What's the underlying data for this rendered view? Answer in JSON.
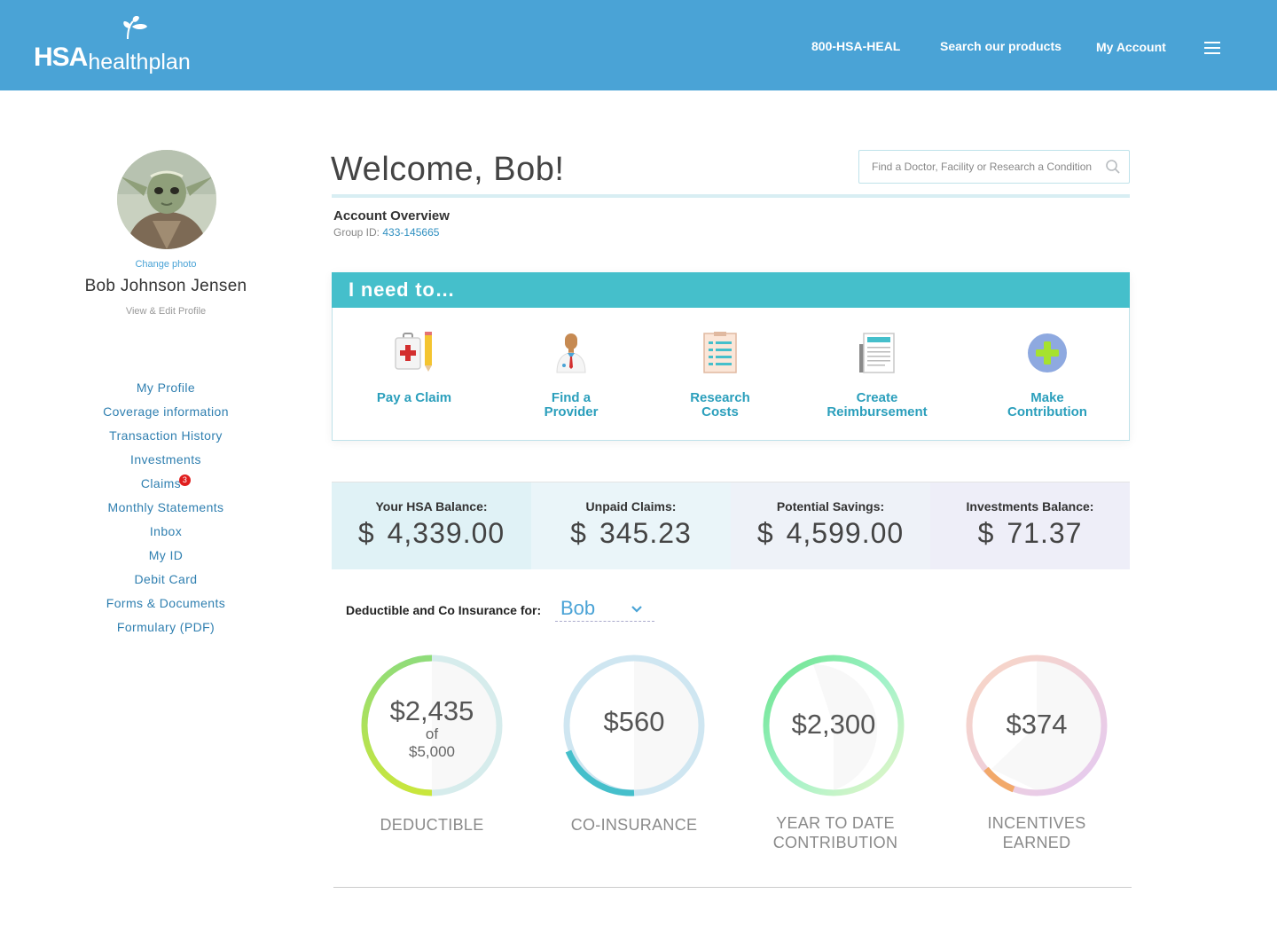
{
  "header": {
    "logo_bold": "HSA",
    "logo_light": "healthplan",
    "phone": "800-HSA-HEAL",
    "search_products": "Search our products",
    "my_account": "My Account",
    "menu_icon": "hamburger-menu-icon"
  },
  "sidebar": {
    "change_photo": "Change photo",
    "user_name": "Bob Johnson Jensen",
    "edit_profile": "View & Edit Profile",
    "nav": [
      {
        "label": "My Profile"
      },
      {
        "label": "Coverage information"
      },
      {
        "label": "Transaction History"
      },
      {
        "label": "Investments"
      },
      {
        "label": "Claims",
        "badge": "3"
      },
      {
        "label": "Monthly Statements"
      },
      {
        "label": "Inbox"
      },
      {
        "label": "My ID"
      },
      {
        "label": "Debit Card"
      },
      {
        "label": "Forms & Documents"
      },
      {
        "label": "Formulary (PDF)"
      }
    ]
  },
  "main": {
    "welcome": "Welcome, Bob!",
    "search_placeholder": "Find a Doctor, Facility or Research a Condition",
    "account_overview": "Account Overview",
    "group_id_label": "Group ID: ",
    "group_id_value": "433-145665",
    "need_title": "I need to…",
    "actions": [
      {
        "line1": "Pay a Claim",
        "line2": "",
        "icon": "medical-kit-pencil-icon"
      },
      {
        "line1": "Find a",
        "line2": "Provider",
        "icon": "doctor-icon"
      },
      {
        "line1": "Research",
        "line2": "Costs",
        "icon": "clipboard-icon"
      },
      {
        "line1": "Create",
        "line2": "Reimbursement",
        "icon": "document-icon"
      },
      {
        "line1": "Make",
        "line2": "Contribution",
        "icon": "plus-circle-icon"
      }
    ],
    "balances": [
      {
        "title": "Your HSA Balance:",
        "currency": "$",
        "amount": "4,339.00",
        "bg": "#e0f2f6"
      },
      {
        "title": "Unpaid Claims:",
        "currency": "$",
        "amount": "345.23",
        "bg": "#eaf5f9"
      },
      {
        "title": "Potential Savings:",
        "currency": "$",
        "amount": "4,599.00",
        "bg": "#eef2f8"
      },
      {
        "title": "Investments Balance:",
        "currency": "$",
        "amount": "71.37",
        "bg": "#eeeef8"
      }
    ],
    "deductible_label": "Deductible and Co Insurance for:",
    "deductible_person": "Bob",
    "gauges": [
      {
        "amount": "$2,435",
        "of": "of",
        "total": "$5,000",
        "label_1": "DEDUCTIBLE",
        "label_2": "",
        "fraction": 0.487
      },
      {
        "amount": "$560",
        "of": "",
        "total": "",
        "label_1": "CO-INSURANCE",
        "label_2": "",
        "fraction": 0.19
      },
      {
        "amount": "$2,300",
        "of": "",
        "total": "",
        "label_1": "YEAR TO DATE",
        "label_2": "CONTRIBUTION",
        "fraction": 0.95
      },
      {
        "amount": "$374",
        "of": "",
        "total": "",
        "label_1": "INCENTIVES",
        "label_2": "EARNED",
        "fraction": 0.11
      }
    ]
  },
  "colors": {
    "header_bg": "#4aa3d6",
    "accent_teal": "#45bfcb",
    "link_blue": "#2f7fb0",
    "badge_red": "#e01e1e"
  }
}
